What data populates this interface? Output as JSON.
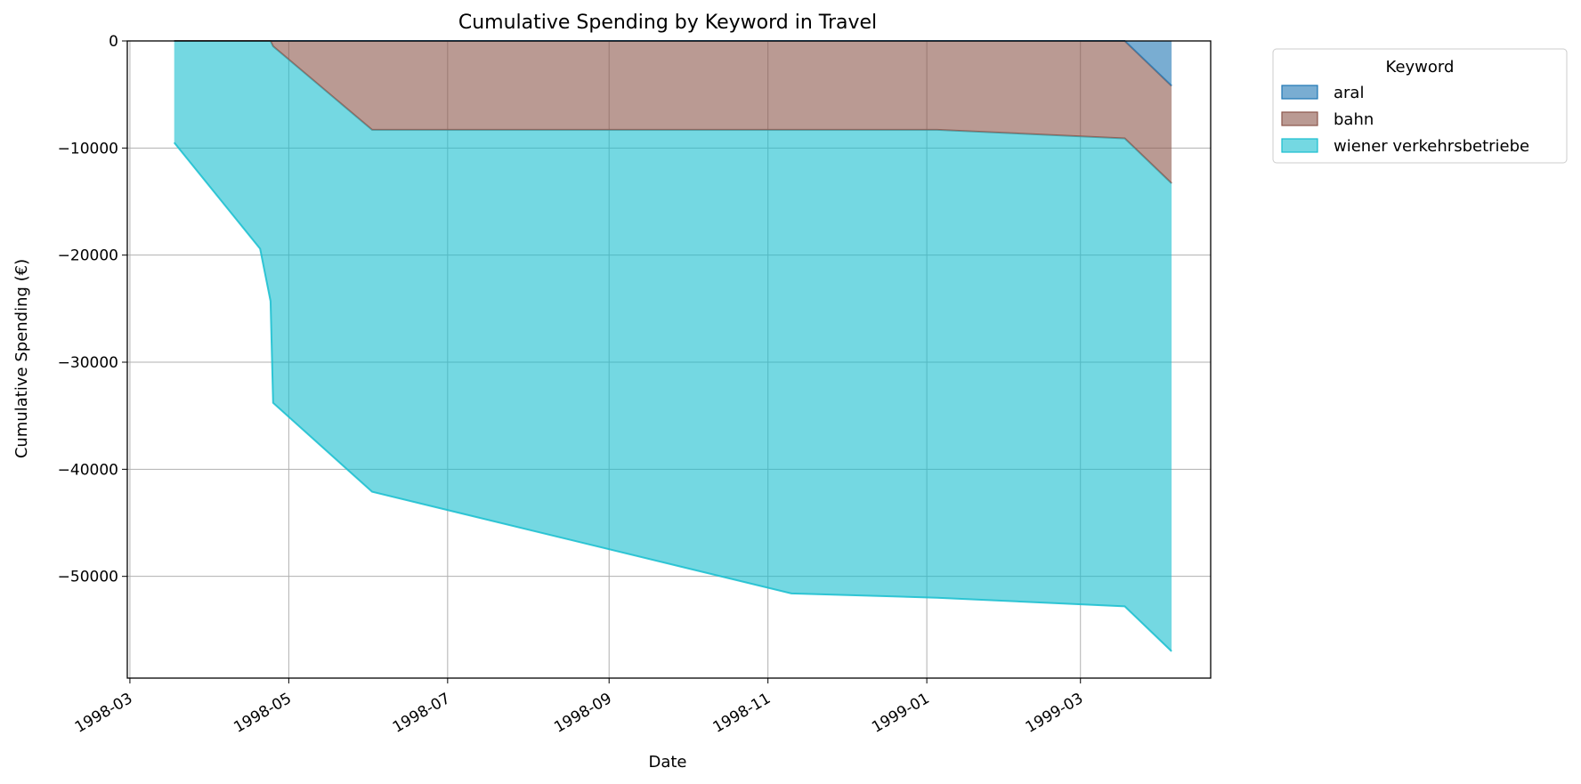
{
  "chart_data": {
    "type": "area",
    "stacked": true,
    "title": "Cumulative Spending by Keyword in Travel",
    "xlabel": "Date",
    "ylabel": "Cumulative Spending (€)",
    "x_ticks": [
      "1998-03",
      "1998-05",
      "1998-07",
      "1998-09",
      "1998-11",
      "1999-01",
      "1999-03"
    ],
    "y_ticks": [
      0,
      -10000,
      -20000,
      -30000,
      -40000,
      -50000
    ],
    "y_tick_labels": [
      "0",
      "−10000",
      "−20000",
      "−30000",
      "−40000",
      "−50000"
    ],
    "xlim": [
      "1998-02-28",
      "1999-04-20"
    ],
    "ylim": [
      -59500,
      0
    ],
    "grid": true,
    "legend": {
      "title": "Keyword",
      "placement": "outside-top-right"
    },
    "x": [
      "1998-03-18",
      "1998-04-20",
      "1998-04-24",
      "1998-04-25",
      "1998-06-02",
      "1998-11-10",
      "1999-01-05",
      "1999-03-18",
      "1999-04-05"
    ],
    "series": [
      {
        "name": "aral",
        "color": "#1f77b4",
        "values": [
          0,
          0,
          0,
          0,
          0,
          0,
          0,
          0,
          -4200
        ]
      },
      {
        "name": "bahn",
        "color": "#8c564b",
        "values": [
          0,
          0,
          0,
          -500,
          -8300,
          -8300,
          -8300,
          -9100,
          -9100
        ]
      },
      {
        "name": "wiener verkehrsbetriebe",
        "color": "#17becf",
        "values": [
          -9500,
          -19400,
          -24300,
          -33300,
          -33800,
          -43300,
          -43700,
          -43700,
          -43700
        ]
      }
    ]
  }
}
